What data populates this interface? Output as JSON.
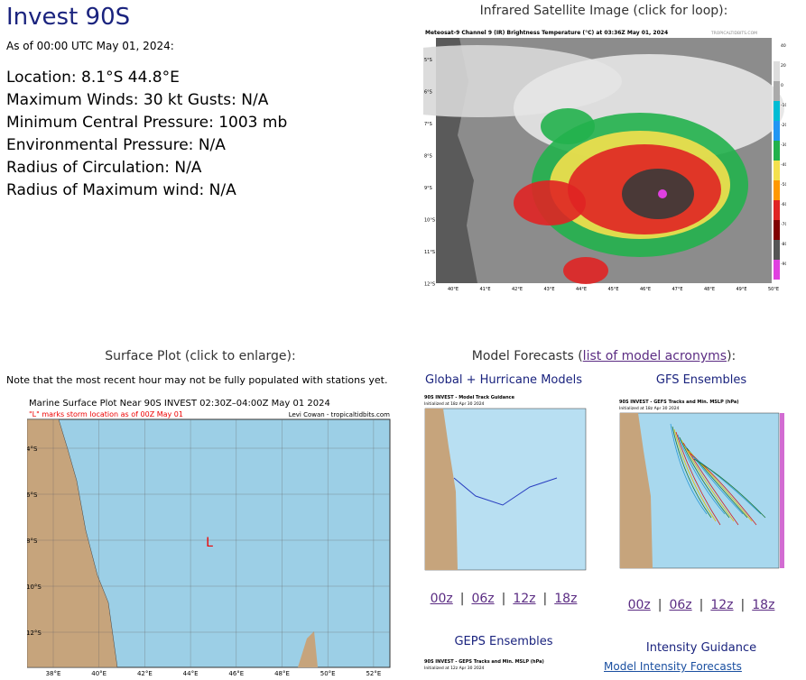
{
  "header": {
    "title": "Invest 90S",
    "as_of": "As of 00:00 UTC May 01, 2024:"
  },
  "info": [
    "Location: 8.1°S 44.8°E",
    "Maximum Winds: 30 kt  Gusts: N/A",
    "Minimum Central Pressure: 1003 mb",
    "Environmental Pressure: N/A",
    "Radius of Circulation: N/A",
    "Radius of Maximum wind: N/A"
  ],
  "satellite": {
    "heading": "Infrared Satellite Image (click for loop):",
    "image_title": "Meteosat-9 Channel 9 (IR) Brightness Temperature (°C) at 03:36Z May 01, 2024",
    "credit": "TROPICALTIDBITS.COM",
    "lat_labels": [
      "5°S",
      "6°S",
      "7°S",
      "8°S",
      "9°S",
      "10°S",
      "11°S",
      "12°S"
    ],
    "lon_labels": [
      "40°E",
      "41°E",
      "42°E",
      "43°E",
      "44°E",
      "45°E",
      "46°E",
      "47°E",
      "48°E",
      "49°E",
      "50°E"
    ],
    "colorbar_labels": [
      "40",
      "20",
      "0",
      "-10",
      "-20",
      "-30",
      "-40",
      "-50",
      "-60",
      "-70",
      "-80",
      "-90"
    ]
  },
  "surface": {
    "heading": "Surface Plot (click to enlarge):",
    "note": "Note that the most recent hour may not be fully populated with stations yet.",
    "plot_title": "Marine Surface Plot Near 90S INVEST 02:30Z–04:00Z May 01 2024",
    "plot_subtitle": "\"L\" marks storm location as of 00Z May 01",
    "credit": "Levi Cowan - tropicaltidbits.com",
    "storm_marker": "L",
    "lat_labels": [
      "4°S",
      "6°S",
      "8°S",
      "10°S",
      "12°S"
    ],
    "lon_labels": [
      "38°E",
      "40°E",
      "42°E",
      "44°E",
      "46°E",
      "48°E",
      "50°E",
      "52°E"
    ]
  },
  "models": {
    "heading": "Model Forecasts (",
    "heading_link": "list of model acronyms",
    "heading_end": "):",
    "global_title": "Global + Hurricane Models",
    "gfs_title": "GFS Ensembles",
    "geps_title": "GEPS Ensembles",
    "global_image_title": "90S INVEST - Model Track Guidance",
    "global_image_init": "Initialized at 18z Apr 30 2024",
    "gfs_image_title": "90S INVEST - GEFS Tracks and Min. MSLP (hPa)",
    "gfs_image_init": "Initialized at 18z Apr 30 2024",
    "geps_image_title": "90S INVEST - GEPS Tracks and Min. MSLP (hPa)",
    "geps_image_init": "Initialized at 12z Apr 30 2024",
    "runs": [
      "00z",
      "06z",
      "12z",
      "18z"
    ],
    "separator": "|"
  },
  "intensity": {
    "title": "Intensity Guidance",
    "link": "Model Intensity Forecasts"
  }
}
